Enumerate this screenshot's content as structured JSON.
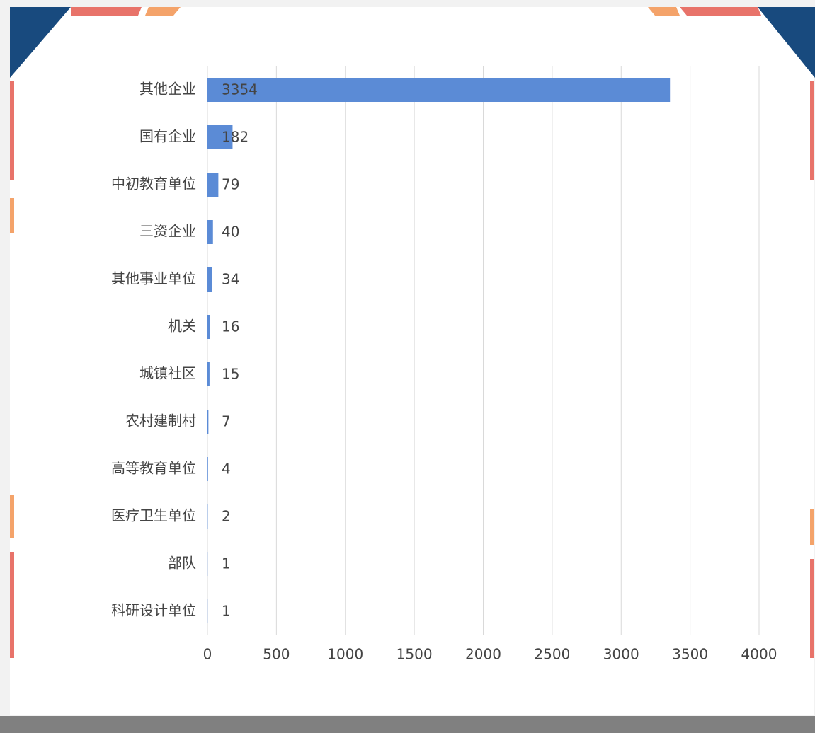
{
  "chart_data": {
    "type": "bar",
    "orientation": "horizontal",
    "categories": [
      "其他企业",
      "国有企业",
      "中初教育单位",
      "三资企业",
      "其他事业单位",
      "机关",
      "城镇社区",
      "农村建制村",
      "高等教育单位",
      "医疗卫生单位",
      "部队",
      "科研设计单位"
    ],
    "values": [
      3354,
      182,
      79,
      40,
      34,
      16,
      15,
      7,
      4,
      2,
      1,
      1
    ],
    "color": "#5b8bd6",
    "xlim": [
      0,
      4000
    ],
    "xticks": [
      0,
      500,
      1000,
      1500,
      2000,
      2500,
      3000,
      3500,
      4000
    ],
    "grid": true
  }
}
